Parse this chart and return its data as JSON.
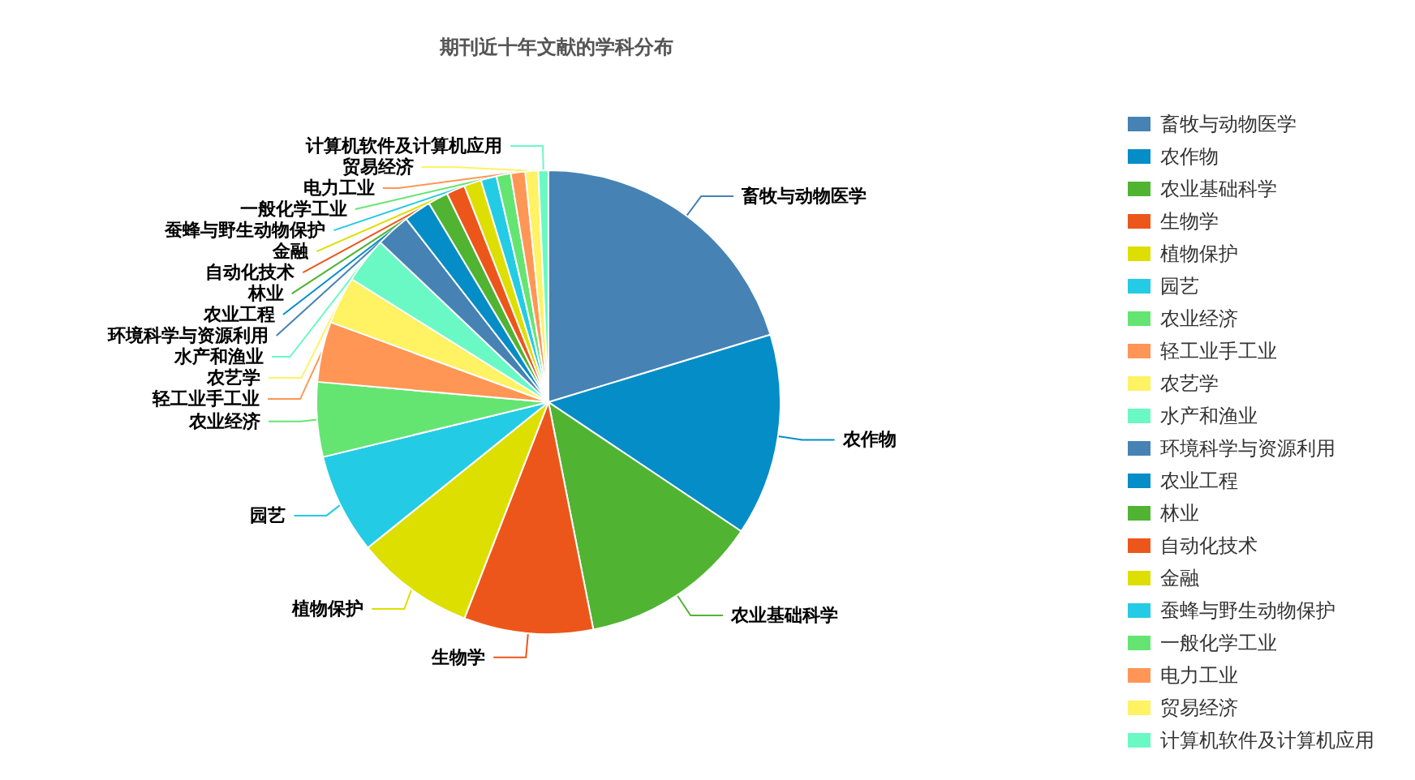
{
  "chart_data": {
    "type": "pie",
    "title": "期刊近十年文献的学科分布",
    "categories": [
      "畜牧与动物医学",
      "农作物",
      "农业基础科学",
      "生物学",
      "植物保护",
      "园艺",
      "农业经济",
      "轻工业手工业",
      "农艺学",
      "水产和渔业",
      "环境科学与资源利用",
      "农业工程",
      "林业",
      "自动化技术",
      "金融",
      "蚕蜂与野生动物保护",
      "一般化学工业",
      "电力工业",
      "贸易经济",
      "计算机软件及计算机应用"
    ],
    "values": [
      20.3,
      14.1,
      12.5,
      9.0,
      8.3,
      7.0,
      5.2,
      4.2,
      3.3,
      3.2,
      2.4,
      1.9,
      1.4,
      1.3,
      1.2,
      1.1,
      1.0,
      1.0,
      0.9,
      0.7
    ],
    "colors": [
      "#4682b4",
      "#058dc7",
      "#50b432",
      "#ed561b",
      "#dddf00",
      "#24cbe5",
      "#64e572",
      "#ff9655",
      "#fff263",
      "#6af9c4",
      "#4682b4",
      "#058dc7",
      "#50b432",
      "#ed561b",
      "#dddf00",
      "#24cbe5",
      "#64e572",
      "#ff9655",
      "#fff263",
      "#6af9c4"
    ],
    "legend": "right"
  }
}
